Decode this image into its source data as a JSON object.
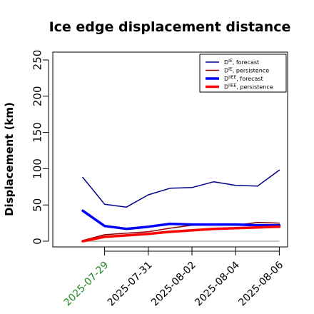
{
  "chart_data": {
    "type": "line",
    "title": "Ice edge displacement distance",
    "xlabel": "",
    "ylabel": "Displacement (km)",
    "ylim": [
      0,
      260
    ],
    "yticks": [
      0,
      50,
      100,
      150,
      200,
      250
    ],
    "x_tick_labels": [
      "2025-07-29",
      "2025-07-31",
      "2025-08-02",
      "2025-08-04",
      "2025-08-06"
    ],
    "x_tick_colors": [
      "#228b22",
      "#000000",
      "#000000",
      "#000000",
      "#000000"
    ],
    "x_tick_positions": [
      1,
      3,
      5,
      7,
      9
    ],
    "x": [
      0,
      1,
      2,
      3,
      4,
      5,
      6,
      7,
      8,
      9
    ],
    "legend_position": "top-right",
    "grid": false,
    "series": [
      {
        "name": "D^IE forecast",
        "color": "#00008b",
        "width": 1.5,
        "values": [
          88,
          51,
          47,
          64,
          73,
          74,
          82,
          77,
          76,
          98
        ]
      },
      {
        "name": "D^IE persistence",
        "color": "#8b0000",
        "width": 1.5,
        "values": [
          1,
          9,
          11,
          13,
          18,
          22,
          23,
          22,
          26,
          25
        ]
      },
      {
        "name": "D^IIEE forecast",
        "color": "#0000ff",
        "width": 3.5,
        "values": [
          42,
          21,
          17,
          20,
          24,
          23,
          23,
          23,
          22,
          22
        ]
      },
      {
        "name": "D^IIEE persistence",
        "color": "#ff0000",
        "width": 3.5,
        "values": [
          0,
          6,
          8,
          10,
          13,
          15,
          17,
          18,
          19,
          20
        ]
      }
    ],
    "zero_line": true
  }
}
